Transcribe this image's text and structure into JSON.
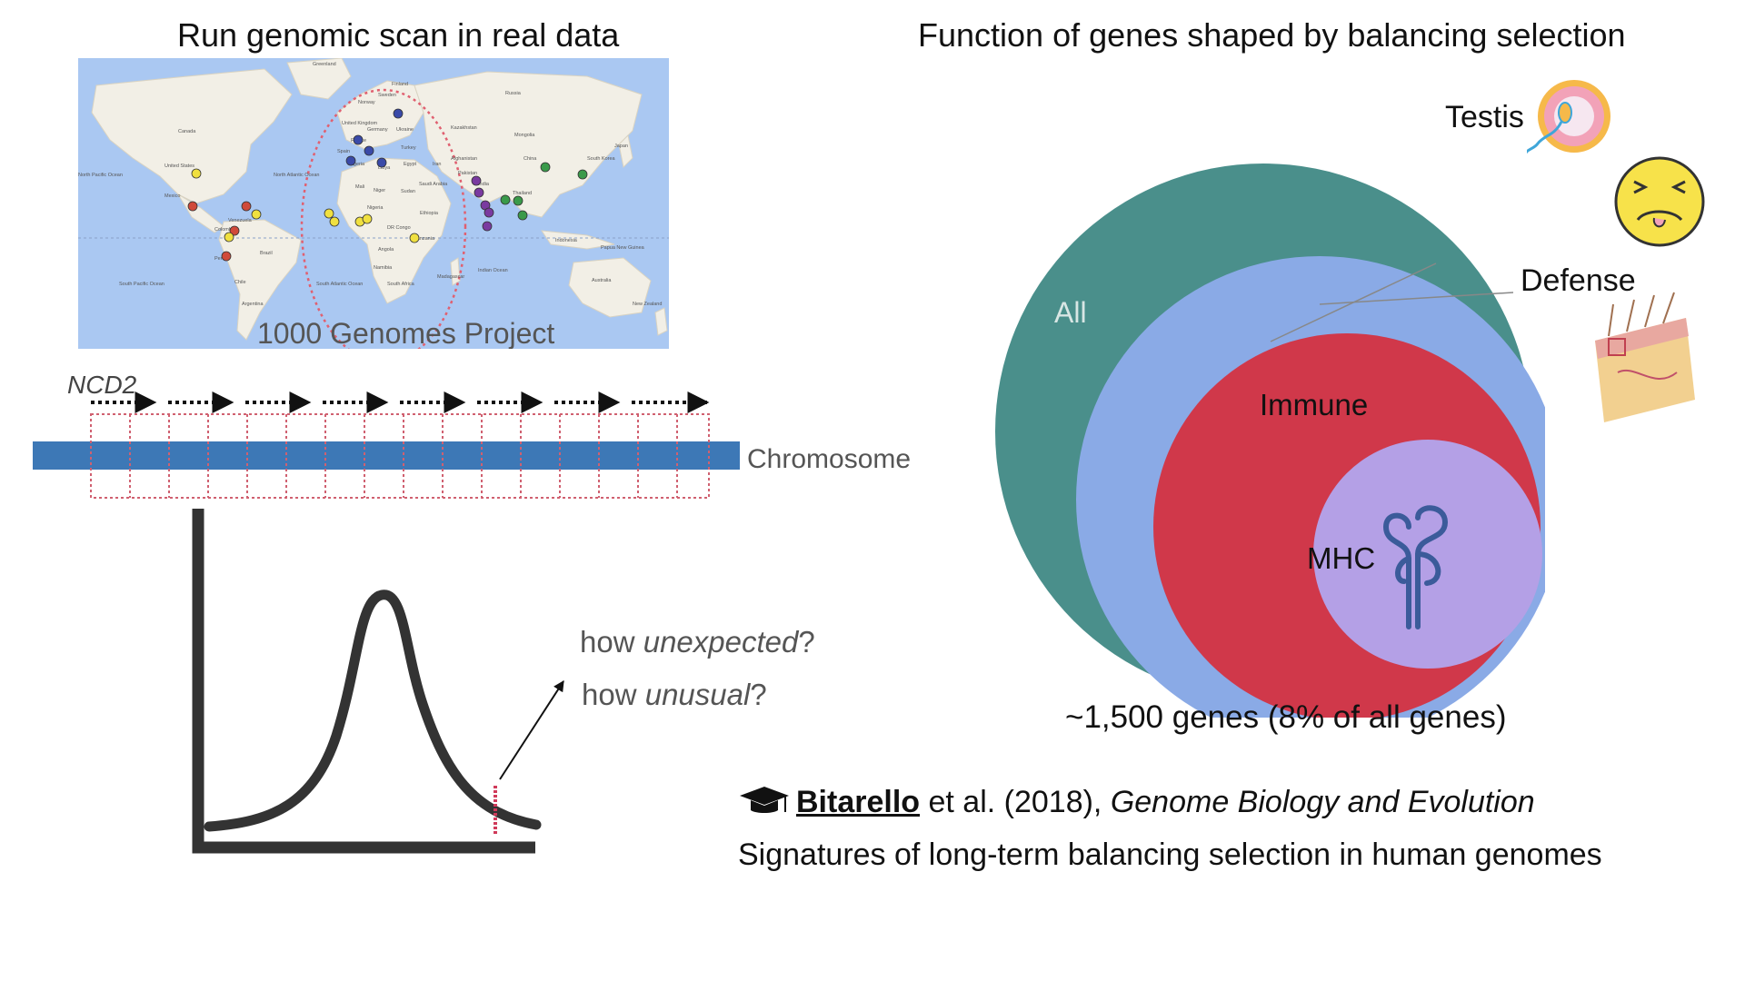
{
  "left_title": "Run genomic scan in real data",
  "right_title": "Function of genes shaped by balancing selection",
  "map": {
    "caption": "1000 Genomes Project",
    "labels": [
      "Greenland",
      "Canada",
      "United States",
      "Mexico",
      "North Atlantic Ocean",
      "North Pacific Ocean",
      "South Pacific Ocean",
      "South Atlantic Ocean",
      "Venezuela",
      "Colombia",
      "Peru",
      "Brazil",
      "Chile",
      "Argentina",
      "Finland",
      "Sweden",
      "Norway",
      "United Kingdom",
      "Germany",
      "France",
      "Spain",
      "Ukraine",
      "Turkey",
      "Russia",
      "Kazakhstan",
      "Mongolia",
      "China",
      "Japan",
      "South Korea",
      "India",
      "Pakistan",
      "Afghanistan",
      "Iran",
      "Saudi Arabia",
      "Algeria",
      "Libya",
      "Egypt",
      "Mali",
      "Niger",
      "Sudan",
      "Nigeria",
      "Ethiopia",
      "DR Congo",
      "Tanzania",
      "Angola",
      "Namibia",
      "South Africa",
      "Madagascar",
      "Indian Ocean",
      "Indonesia",
      "Australia",
      "Papua New Guinea",
      "New Zealand",
      "Thailand"
    ],
    "colors": {
      "water": "#aac8f2",
      "land": "#f2efe6",
      "ellipse": "#e06070"
    }
  },
  "ncd_label": "NCD2",
  "chromosome_label": "Chromosome",
  "question_1": {
    "prefix": "how ",
    "emph": "unexpected",
    "suffix": "?"
  },
  "question_2": {
    "prefix": "how ",
    "emph": "unusual",
    "suffix": "?"
  },
  "venn": {
    "all": "All",
    "defense": "Defense",
    "immune": "Immune",
    "mhc": "MHC",
    "testis": "Testis",
    "colors": {
      "all": "#4a8f8b",
      "defense": "#8aaae6",
      "immune": "#d0384a",
      "mhc": "#b4a0e6",
      "testis": "#f2bd45"
    }
  },
  "genes_count": "~1,500 genes (8% of all genes)",
  "citation": {
    "author": "Bitarello",
    "middle": " et al. (2018), ",
    "journal": "Genome Biology and Evolution",
    "title": "Signatures of long-term balancing selection in human genomes"
  },
  "icons": [
    "graduation-cap-icon",
    "sperm-egg-icon",
    "nauseated-face-icon",
    "skin-cross-section-icon",
    "mhc-molecule-icon"
  ]
}
